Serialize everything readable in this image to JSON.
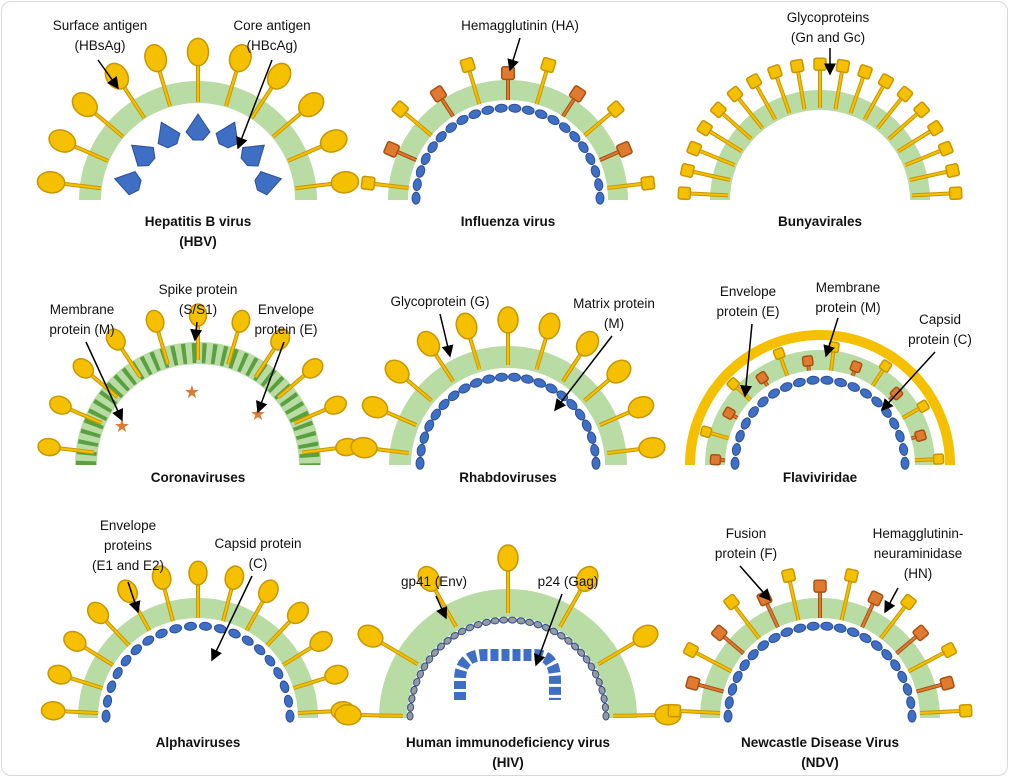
{
  "panels": [
    {
      "title": [
        "Hepatitis B virus",
        "(HBV)"
      ],
      "labels": [
        [
          "Surface antigen",
          "(HBsAg)"
        ],
        [
          "Core antigen",
          "(HBcAg)"
        ]
      ]
    },
    {
      "title": [
        "Influenza virus"
      ],
      "labels": [
        [
          "Hemagglutinin (HA)"
        ]
      ]
    },
    {
      "title": [
        "Bunyavirales"
      ],
      "labels": [
        [
          "Glycoproteins",
          "(Gn and Gc)"
        ]
      ]
    },
    {
      "title": [
        "Coronaviruses"
      ],
      "labels": [
        [
          "Membrane",
          "protein (M)"
        ],
        [
          "Spike protein",
          "(S/S1)"
        ],
        [
          "Envelope",
          "protein (E)"
        ]
      ]
    },
    {
      "title": [
        "Rhabdoviruses"
      ],
      "labels": [
        [
          "Glycoprotein (G)"
        ],
        [
          "Matrix protein",
          "(M)"
        ]
      ]
    },
    {
      "title": [
        "Flaviviridae"
      ],
      "labels": [
        [
          "Envelope",
          "protein (E)"
        ],
        [
          "Membrane",
          "protein (M)"
        ],
        [
          "Capsid",
          "protein (C)"
        ]
      ]
    },
    {
      "title": [
        "Alphaviruses"
      ],
      "labels": [
        [
          "Envelope",
          "proteins",
          "(E1 and E2)"
        ],
        [
          "Capsid protein",
          "(C)"
        ]
      ]
    },
    {
      "title": [
        "Human immunodeficiency virus",
        "(HIV)"
      ],
      "labels": [
        [
          "gp41 (Env)"
        ],
        [
          "p24 (Gag)"
        ]
      ]
    },
    {
      "title": [
        "Newcastle Disease Virus",
        "(NDV)"
      ],
      "labels": [
        [
          "Fusion",
          "protein (F)"
        ],
        [
          "Hemagglutinin-",
          "neuraminidase",
          "(HN)"
        ]
      ]
    }
  ],
  "colors": {
    "envelope": "#b9dca4",
    "spike": "#f5c000",
    "spike_outline": "#c89600",
    "capsid": "#3f6fc4",
    "membrane_protein": "#e07a30",
    "corona_membrane": "#5aa040",
    "hiv_matrix": "#9a9a9a"
  }
}
